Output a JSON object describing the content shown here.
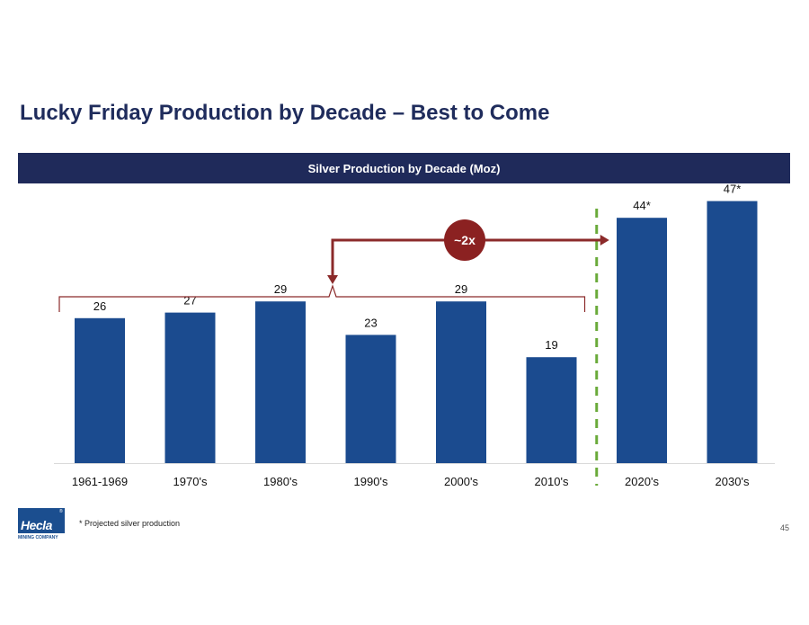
{
  "title": "Lucky Friday Production by Decade – Best to Come",
  "banner": "Silver Production by Decade (Moz)",
  "footnote": "* Projected silver production",
  "page_number": "45",
  "logo": {
    "text": "Hecla",
    "registered": "®",
    "subtitle": "MINING COMPANY"
  },
  "colors": {
    "title": "#1f2c5c",
    "banner_bg": "#1f2a5a",
    "bar": "#1b4b8f",
    "bracket": "#8b2a2a",
    "divider": "#6aaa3a"
  },
  "annotation": {
    "label": "~2x"
  },
  "chart_data": {
    "type": "bar",
    "categories": [
      "1961-1969",
      "1970's",
      "1980's",
      "1990's",
      "2000's",
      "2010's",
      "2020's",
      "2030's"
    ],
    "values": [
      26,
      27,
      29,
      23,
      29,
      19,
      44,
      47
    ],
    "data_labels": [
      "26",
      "27",
      "29",
      "23",
      "29",
      "19",
      "44*",
      "47*"
    ],
    "projected": [
      false,
      false,
      false,
      false,
      false,
      false,
      true,
      true
    ],
    "title": "Silver Production by Decade (Moz)",
    "xlabel": "",
    "ylabel": "",
    "ylim": [
      0,
      50
    ],
    "grid": false,
    "legend": "none"
  }
}
